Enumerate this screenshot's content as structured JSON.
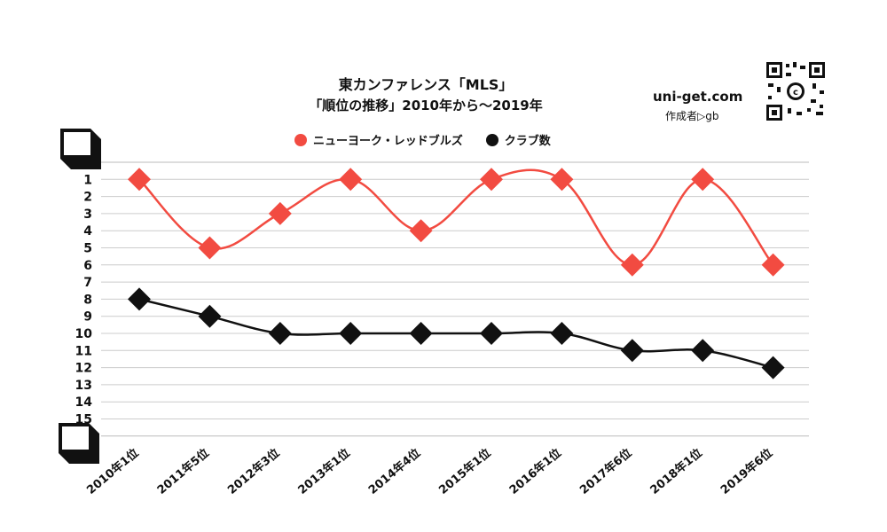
{
  "header": {
    "title": "東カンファレンス「MLS」",
    "subtitle": "「順位の推移」2010年から～2019年",
    "site": "uni-get.com",
    "author": "作成者▷gb"
  },
  "colors": {
    "series_red": "#f24b41",
    "series_black": "#111111",
    "grid": "#cccccc"
  },
  "chart_data": {
    "type": "line",
    "title": "東カンファレンス「MLS」",
    "subtitle": "「順位の推移」2010年から～2019年",
    "categories": [
      "2010年1位",
      "2011年5位",
      "2012年3位",
      "2013年1位",
      "2014年4位",
      "2015年1位",
      "2016年1位",
      "2017年6位",
      "2018年1位",
      "2019年6位"
    ],
    "y_ticks": [
      "1",
      "2",
      "3",
      "4",
      "5",
      "6",
      "7",
      "8",
      "9",
      "10",
      "11",
      "12",
      "13",
      "14",
      "15"
    ],
    "ylim": [
      0,
      16
    ],
    "y_inverted": true,
    "grid": true,
    "legend_position": "top-center",
    "series": [
      {
        "name": "ニューヨーク・レッドブルズ",
        "values": [
          1,
          5,
          3,
          1,
          4,
          1,
          1,
          6,
          1,
          6
        ],
        "color": "#f24b41",
        "marker": "diamond"
      },
      {
        "name": "クラブ数",
        "values": [
          8,
          9,
          10,
          10,
          10,
          10,
          10,
          11,
          11,
          12
        ],
        "color": "#111111",
        "marker": "diamond"
      }
    ]
  }
}
